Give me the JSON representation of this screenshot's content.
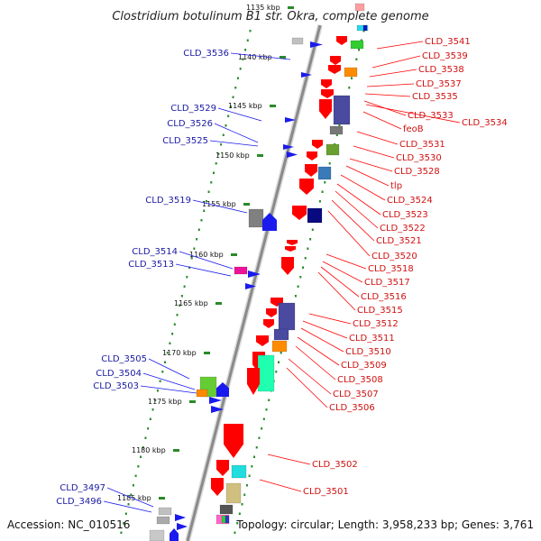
{
  "title": "Clostridium botulinum B1 str. Okra, complete genome",
  "footer": {
    "accession": "Accession: NC_010516",
    "topology": "Topology: circular; Length: 3,958,233 bp; Genes: 3,761"
  },
  "kbp_labels": [
    "1135 kbp",
    "1140 kbp",
    "1145 kbp",
    "1150 kbp",
    "1155 kbp",
    "1160 kbp",
    "1165 kbp",
    "1170 kbp",
    "1175 kbp",
    "1180 kbp",
    "1185 kbp"
  ],
  "blue_labels": [
    "CLD_3536",
    "CLD_3529",
    "CLD_3526",
    "CLD_3525",
    "CLD_3519",
    "CLD_3514",
    "CLD_3513",
    "CLD_3505",
    "CLD_3504",
    "CLD_3503",
    "CLD_3497",
    "CLD_3496"
  ],
  "red_labels": [
    "CLD_3541",
    "CLD_3539",
    "CLD_3538",
    "CLD_3537",
    "CLD_3535",
    "CLD_3533",
    "CLD_3534",
    "feoB",
    "CLD_3531",
    "CLD_3530",
    "CLD_3528",
    "tlp",
    "CLD_3524",
    "CLD_3523",
    "CLD_3522",
    "CLD_3521",
    "CLD_3520",
    "CLD_3518",
    "CLD_3517",
    "CLD_3516",
    "CLD_3515",
    "CLD_3512",
    "CLD_3511",
    "CLD_3510",
    "CLD_3509",
    "CLD_3508",
    "CLD_3507",
    "CLD_3506",
    "CLD_3502",
    "CLD_3501"
  ],
  "colors": {
    "backbone": "#8a8a8a",
    "tick": "#2a8a2a",
    "forward": "#ff0000",
    "reverse": "#0000ee"
  }
}
